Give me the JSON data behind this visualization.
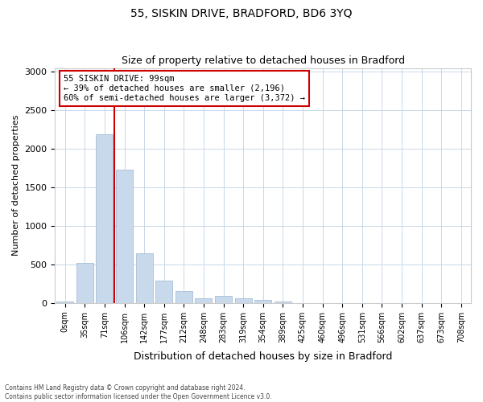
{
  "title": "55, SISKIN DRIVE, BRADFORD, BD6 3YQ",
  "subtitle": "Size of property relative to detached houses in Bradford",
  "xlabel": "Distribution of detached houses by size in Bradford",
  "ylabel": "Number of detached properties",
  "bar_values": [
    20,
    520,
    2190,
    1730,
    640,
    290,
    150,
    65,
    90,
    60,
    40,
    20,
    0,
    0,
    0,
    0,
    0,
    0,
    0,
    0,
    0
  ],
  "bar_labels": [
    "0sqm",
    "35sqm",
    "71sqm",
    "106sqm",
    "142sqm",
    "177sqm",
    "212sqm",
    "248sqm",
    "283sqm",
    "319sqm",
    "354sqm",
    "389sqm",
    "425sqm",
    "460sqm",
    "496sqm",
    "531sqm",
    "566sqm",
    "602sqm",
    "637sqm",
    "673sqm",
    "708sqm"
  ],
  "bar_color": "#c9d9ec",
  "bar_edgecolor": "#9ab5d0",
  "annotation_line1": "55 SISKIN DRIVE: 99sqm",
  "annotation_line2": "← 39% of detached houses are smaller (2,196)",
  "annotation_line3": "60% of semi-detached houses are larger (3,372) →",
  "annotation_box_color": "#ffffff",
  "annotation_box_edgecolor": "#cc0000",
  "vertical_line_color": "#cc0000",
  "vertical_line_x": 2.5,
  "ylim": [
    0,
    3050
  ],
  "yticks": [
    0,
    500,
    1000,
    1500,
    2000,
    2500,
    3000
  ],
  "footer_line1": "Contains HM Land Registry data © Crown copyright and database right 2024.",
  "footer_line2": "Contains public sector information licensed under the Open Government Licence v3.0.",
  "background_color": "#ffffff",
  "grid_color": "#c8d8e8"
}
